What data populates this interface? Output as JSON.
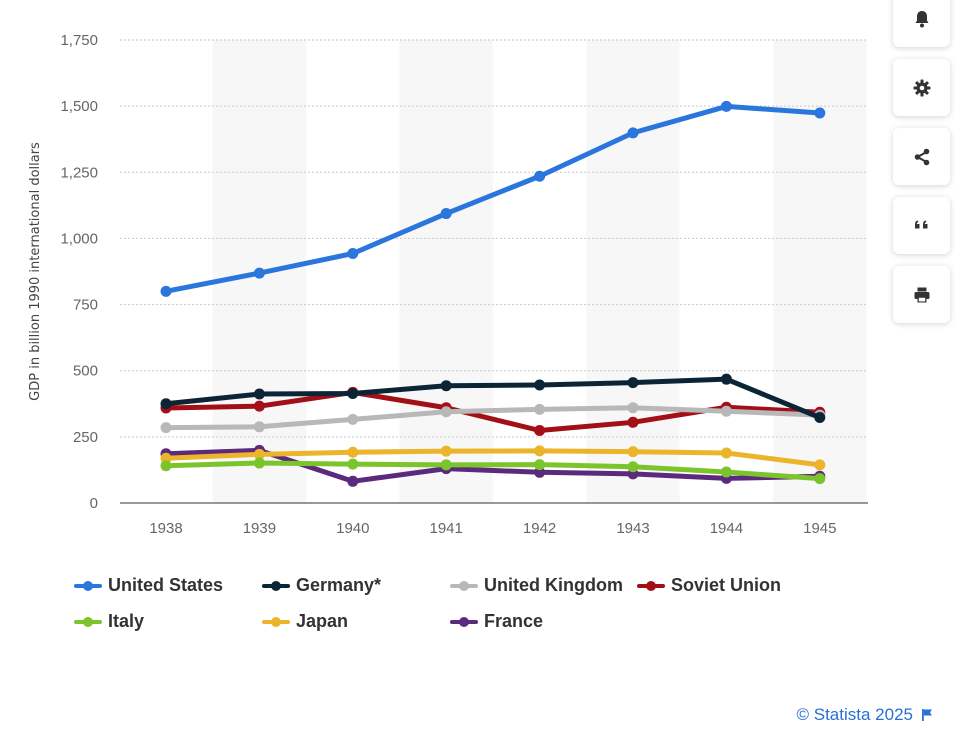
{
  "chart_data": {
    "type": "line",
    "title": "",
    "xlabel": "",
    "ylabel": "GDP in billion 1990 international dollars",
    "ylim": [
      0,
      1750
    ],
    "yticks": [
      0,
      250,
      500,
      750,
      1000,
      1250,
      1500,
      1750
    ],
    "ytick_labels": [
      "0",
      "250",
      "500",
      "750",
      "1,000",
      "1,250",
      "1,500",
      "1,750"
    ],
    "categories": [
      "1938",
      "1939",
      "1940",
      "1941",
      "1942",
      "1943",
      "1944",
      "1945"
    ],
    "grid": true,
    "legend_position": "bottom",
    "series": [
      {
        "name": "United States",
        "color": "#2a76dd",
        "values": [
          800,
          869,
          943,
          1094,
          1235,
          1399,
          1499,
          1474
        ]
      },
      {
        "name": "Germany*",
        "color": "#0c2536",
        "values": [
          375,
          412,
          414,
          443,
          446,
          455,
          468,
          323
        ]
      },
      {
        "name": "United Kingdom",
        "color": "#b8b8b8",
        "values": [
          285,
          288,
          316,
          345,
          354,
          360,
          347,
          332
        ]
      },
      {
        "name": "Soviet Union",
        "color": "#a30f16",
        "values": [
          359,
          366,
          418,
          360,
          274,
          305,
          362,
          343
        ]
      },
      {
        "name": "Italy",
        "color": "#7cc42c",
        "values": [
          141,
          151,
          147,
          144,
          145,
          137,
          117,
          92
        ]
      },
      {
        "name": "Japan",
        "color": "#ecb42a",
        "values": [
          169,
          184,
          192,
          196,
          197,
          194,
          189,
          144
        ]
      },
      {
        "name": "France",
        "color": "#5c2a7c",
        "values": [
          186,
          199,
          82,
          130,
          116,
          110,
          93,
          101
        ]
      }
    ]
  },
  "legend": [
    {
      "label": "United States"
    },
    {
      "label": "Germany*"
    },
    {
      "label": "United Kingdom"
    },
    {
      "label": "Soviet Union"
    },
    {
      "label": "Italy"
    },
    {
      "label": "Japan"
    },
    {
      "label": "France"
    }
  ],
  "toolbar": [
    {
      "icon": "bell-icon"
    },
    {
      "icon": "gear-icon"
    },
    {
      "icon": "share-icon"
    },
    {
      "icon": "quote-icon"
    },
    {
      "icon": "print-icon"
    }
  ],
  "credit": {
    "text": "© Statista 2025",
    "icon": "flag-icon"
  }
}
